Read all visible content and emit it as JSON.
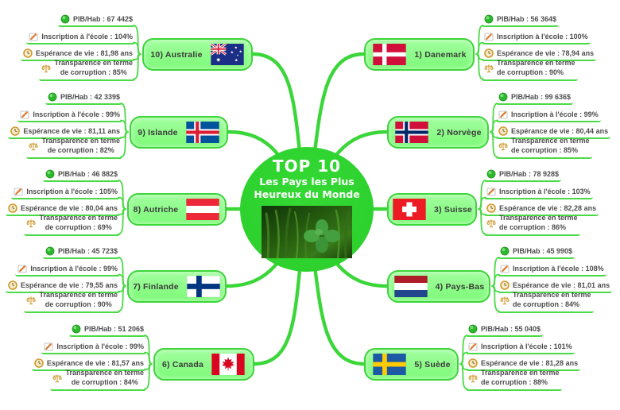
{
  "center": {
    "title": "TOP 10",
    "subtitle_line1": "Les Pays les Plus",
    "subtitle_line2": "Heureux du Monde",
    "image": "four-leaf-clover-photo"
  },
  "colors": {
    "branch_green": "#3bd639",
    "node_border_green": "#3cd53a",
    "node_fill_green": "#8efc8a",
    "underline_green": "#4ada46",
    "center_green": "#2ed32e",
    "stat_text_gray": "#4d4d4d"
  },
  "icons": {
    "pib": "money-icon",
    "ecole": "pencil-icon",
    "vie": "clock-icon",
    "corruption": "scales-icon"
  },
  "countries": [
    {
      "label": "1) Danemark",
      "flag": "denmark",
      "stats": {
        "pib": "PIB/Hab : 56 364$",
        "ecole": "Inscription à l'école : 100%",
        "vie": "Espérance de vie : 78,94 ans",
        "corruption_line1": "Transparence en terme",
        "corruption_line2": "de corruption : 90%"
      }
    },
    {
      "label": "2) Norvège",
      "flag": "norway",
      "stats": {
        "pib": "PIB/Hab : 99 636$",
        "ecole": "Inscription à l'école : 99%",
        "vie": "Espérance de vie : 80,44 ans",
        "corruption_line1": "Transparence en terme",
        "corruption_line2": "de corruption : 85%"
      }
    },
    {
      "label": "3) Suisse",
      "flag": "switzerland",
      "stats": {
        "pib": "PIB/Hab : 78 928$",
        "ecole": "Inscription à l'école : 103%",
        "vie": "Espérance de vie : 82,28 ans",
        "corruption_line1": "Transparence en terme",
        "corruption_line2": "de corruption : 86%"
      }
    },
    {
      "label": "4) Pays-Bas",
      "flag": "netherlands",
      "stats": {
        "pib": "PIB/Hab : 45 990$",
        "ecole": "Inscription à l'école : 108%",
        "vie": "Espérance de vie : 81,01 ans",
        "corruption_line1": "Transparence en terme",
        "corruption_line2": "de corruption : 84%"
      }
    },
    {
      "label": "5) Suède",
      "flag": "sweden",
      "stats": {
        "pib": "PIB/Hab : 55 040$",
        "ecole": "Inscription à l'école : 101%",
        "vie": "Espérance de vie : 81,28 ans",
        "corruption_line1": "Transparence en terme",
        "corruption_line2": "de corruption : 88%"
      }
    },
    {
      "label": "6) Canada",
      "flag": "canada",
      "stats": {
        "pib": "PIB/Hab : 51 206$",
        "ecole": "Inscription à l'école : 99%",
        "vie": "Espérance de vie : 81,57 ans",
        "corruption_line1": "Transparence en terme",
        "corruption_line2": "de corruption : 84%"
      }
    },
    {
      "label": "7) Finlande",
      "flag": "finland",
      "stats": {
        "pib": "PIB/Hab : 45 723$",
        "ecole": "Inscription à l'école : 99%",
        "vie": "Espérance de vie : 79,55 ans",
        "corruption_line1": "Transparence en terme",
        "corruption_line2": "de corruption : 90%"
      }
    },
    {
      "label": "8) Autriche",
      "flag": "austria",
      "stats": {
        "pib": "PIB/Hab : 46 882$",
        "ecole": "Inscription à l'école : 105%",
        "vie": "Espérance de vie : 80,04 ans",
        "corruption_line1": "Transparence en terme",
        "corruption_line2": "de corruption : 69%"
      }
    },
    {
      "label": "9) Islande",
      "flag": "iceland",
      "stats": {
        "pib": "PIB/Hab : 42 339$",
        "ecole": "Inscription à l'école : 99%",
        "vie": "Espérance de vie : 81,11 ans",
        "corruption_line1": "Transparence en terme",
        "corruption_line2": "de corruption : 82%"
      }
    },
    {
      "label": "10) Australie",
      "flag": "australia",
      "stats": {
        "pib": "PIB/Hab : 67 442$",
        "ecole": "Inscription à l'école : 104%",
        "vie": "Espérance de vie : 81,98 ans",
        "corruption_line1": "Transparence en terme",
        "corruption_line2": "de corruption : 85%"
      }
    }
  ]
}
